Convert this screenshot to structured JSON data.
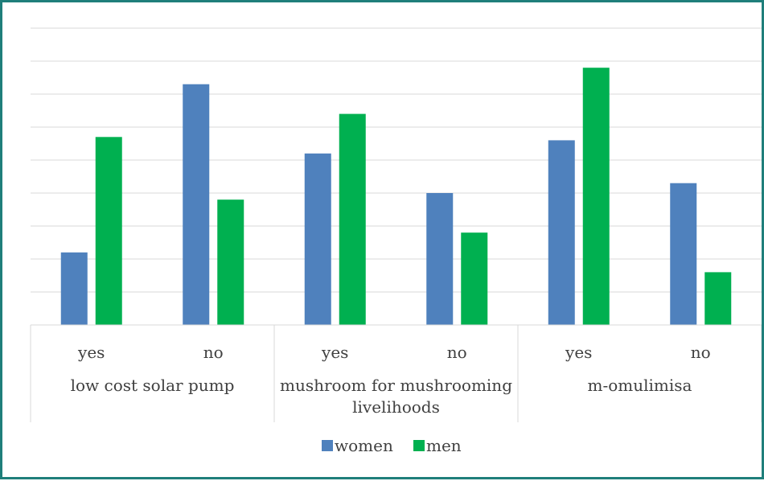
{
  "chart_data": {
    "type": "bar",
    "categories": [
      {
        "sub": "yes",
        "group": "low cost solar pump"
      },
      {
        "sub": "no",
        "group": "low cost solar pump"
      },
      {
        "sub": "yes",
        "group": "mushroom for mushrooming livelihoods"
      },
      {
        "sub": "no",
        "group": "mushroom for mushrooming livelihoods"
      },
      {
        "sub": "yes",
        "group": "m-omulimisa"
      },
      {
        "sub": "no",
        "group": "m-omulimisa"
      }
    ],
    "groups": [
      {
        "label_lines": [
          "low cost solar pump"
        ]
      },
      {
        "label_lines": [
          "mushroom for mushrooming",
          "livelihoods"
        ]
      },
      {
        "label_lines": [
          "m-omulimisa"
        ]
      }
    ],
    "sub_labels": [
      "yes",
      "no",
      "yes",
      "no",
      "yes",
      "no"
    ],
    "series": [
      {
        "name": "women",
        "color": "#4f81bd",
        "values": [
          22,
          73,
          52,
          40,
          56,
          43
        ]
      },
      {
        "name": "men",
        "color": "#00b050",
        "values": [
          57,
          38,
          64,
          28,
          78,
          16
        ]
      }
    ],
    "ylim": [
      0,
      90
    ],
    "grid": true,
    "legend_position": "bottom",
    "title": "",
    "xlabel": "",
    "ylabel": ""
  }
}
